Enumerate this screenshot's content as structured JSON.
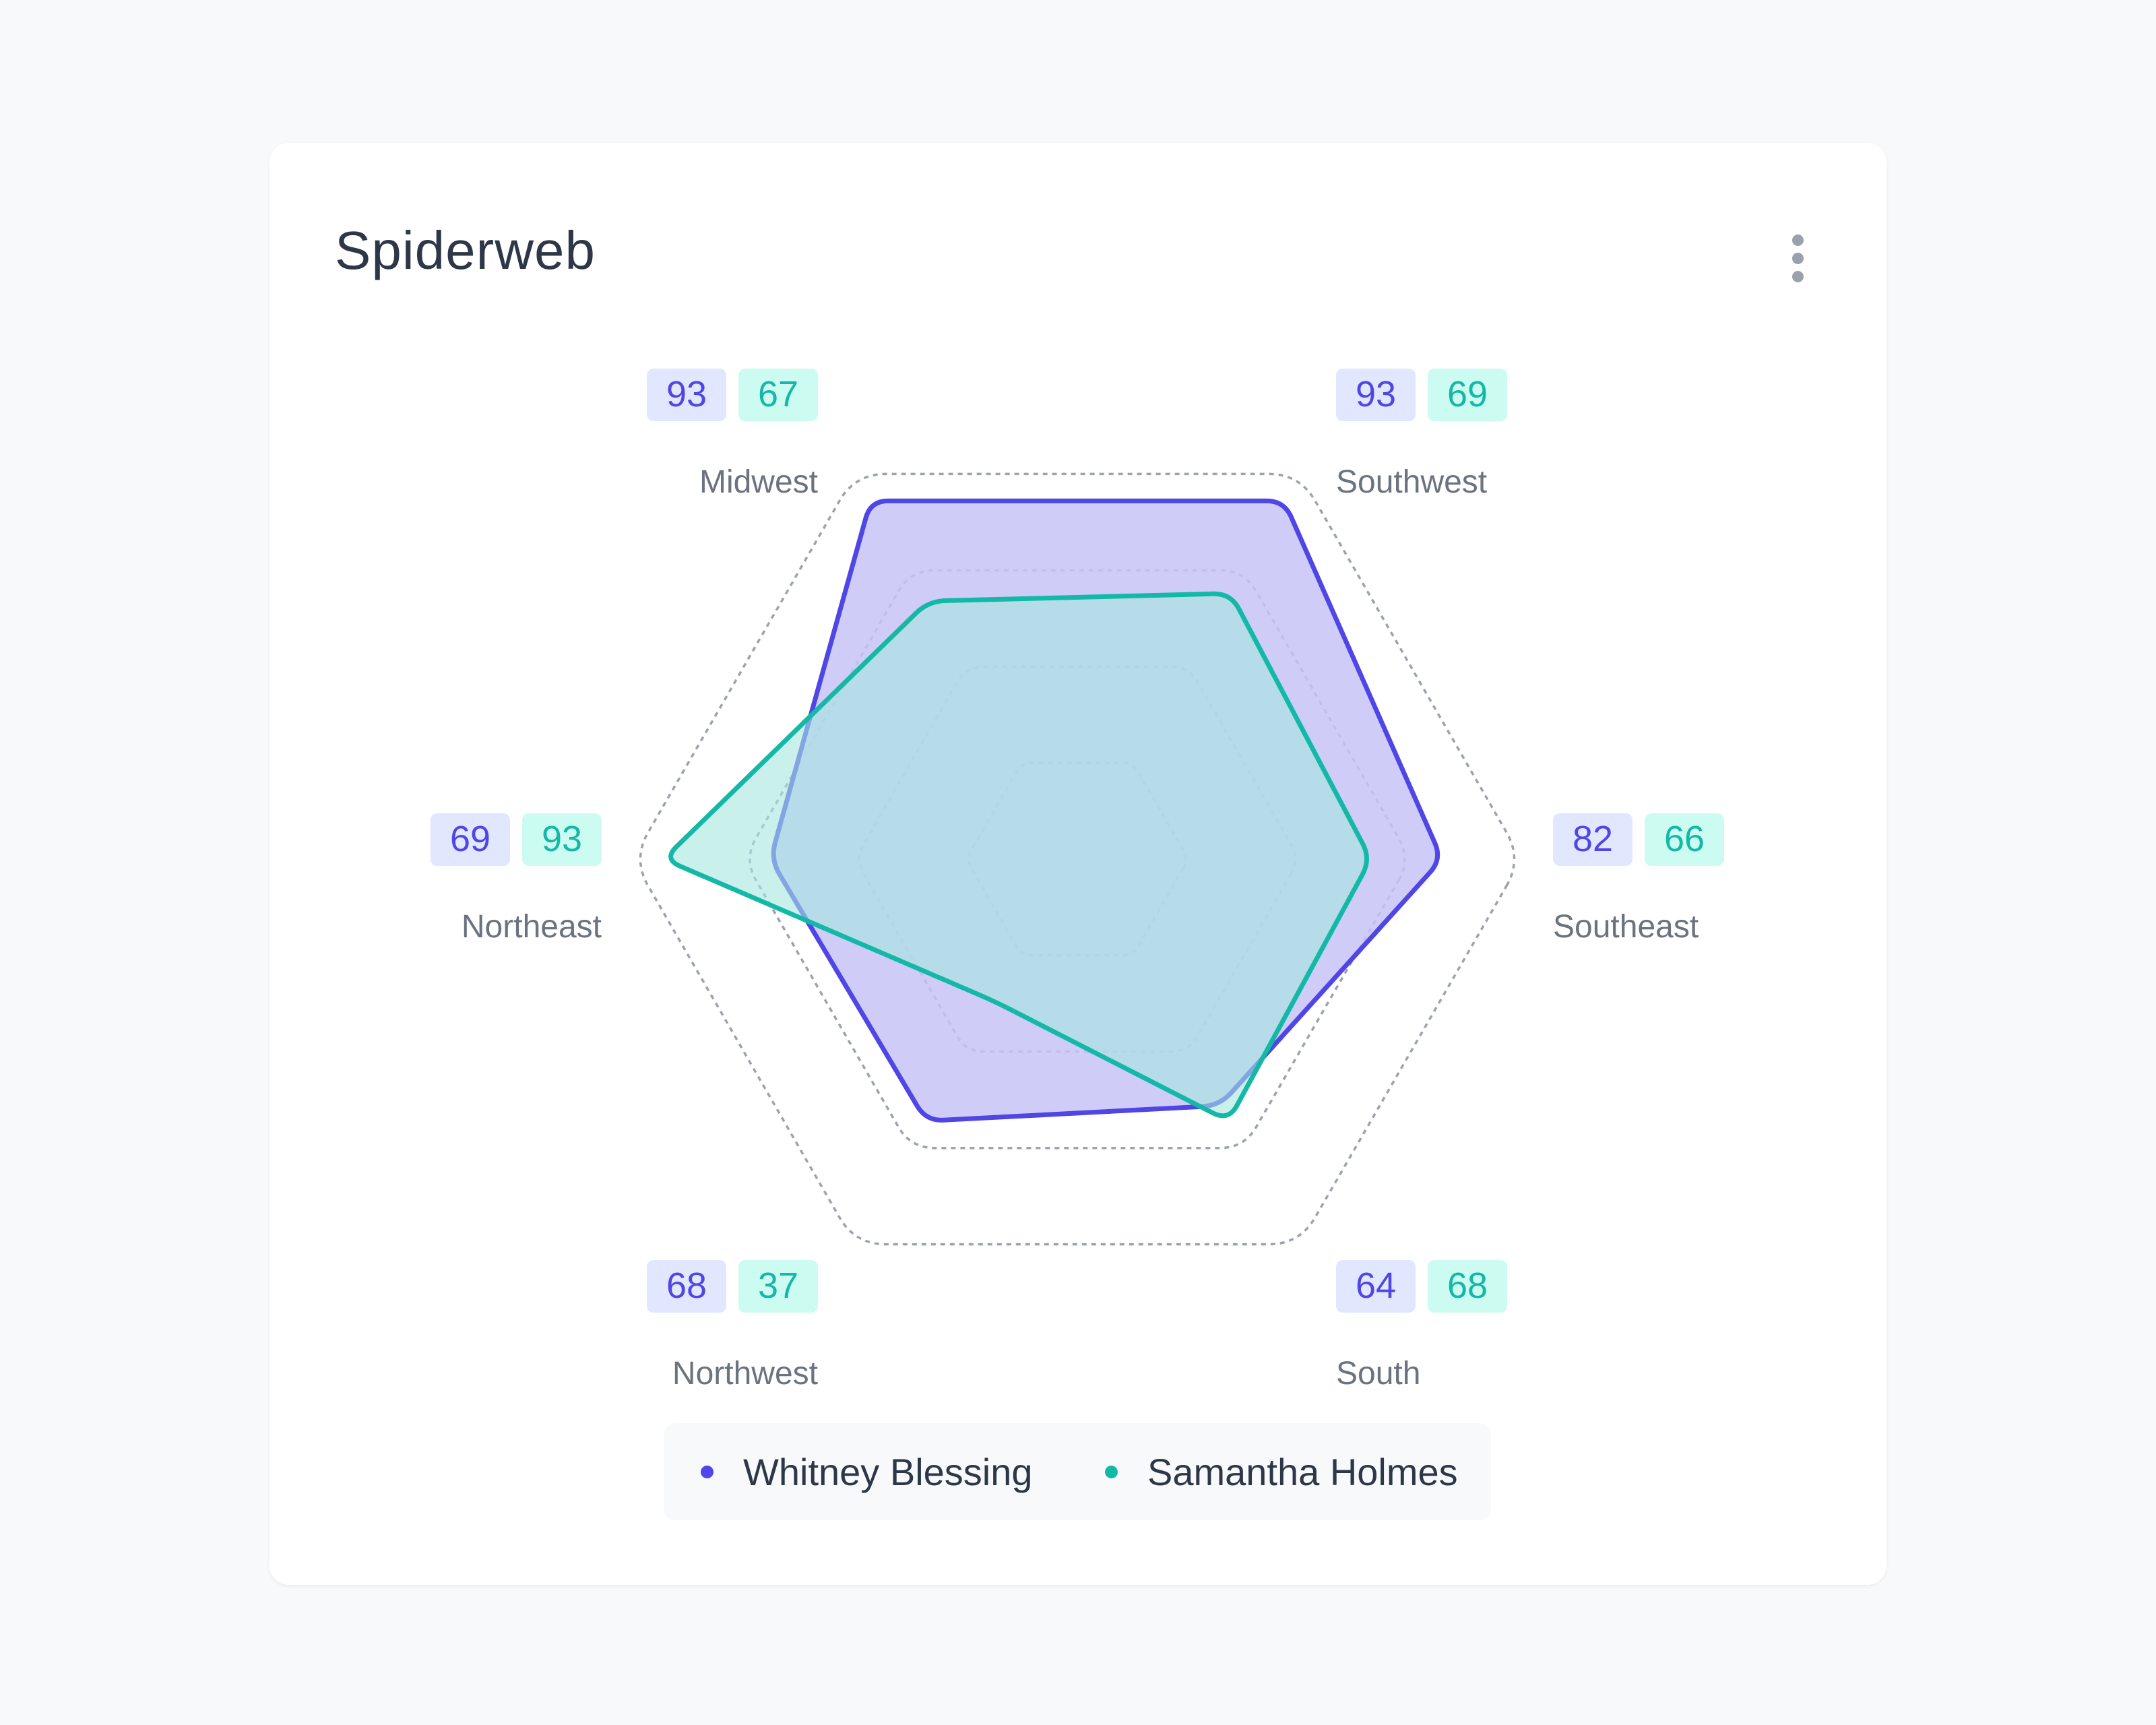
{
  "card": {
    "title": "Spiderweb",
    "menu_icon": "more-vertical-icon"
  },
  "colors": {
    "series_1": "#4f46e5",
    "series_1_fill": "#c7c4f6",
    "series_1_badge_bg": "#e0e7ff",
    "series_2": "#14b8a6",
    "series_2_fill": "#a7e6df",
    "series_2_badge_bg": "#ccfbf1",
    "grid": "#9ca3af",
    "axis_label": "#6b7280",
    "title": "#2d3748"
  },
  "chart_data": {
    "type": "radar",
    "title": "Spiderweb",
    "categories": [
      "Southeast",
      "Southwest",
      "Midwest",
      "Northeast",
      "Northwest",
      "South"
    ],
    "series": [
      {
        "name": "Whitney Blessing",
        "values": [
          82,
          93,
          93,
          69,
          68,
          64
        ]
      },
      {
        "name": "Samantha Holmes",
        "values": [
          66,
          69,
          67,
          93,
          37,
          68
        ]
      }
    ],
    "range": [
      0,
      100
    ],
    "grid_levels": 4,
    "grid_style": "dotted",
    "legend": "bottom-center"
  },
  "legend": {
    "items": [
      {
        "label": "Whitney Blessing"
      },
      {
        "label": "Samantha Holmes"
      }
    ]
  }
}
